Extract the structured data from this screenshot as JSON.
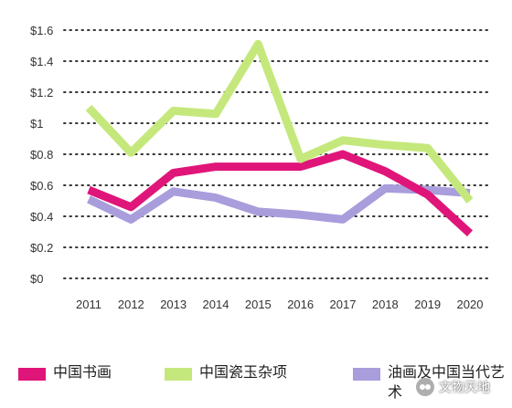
{
  "chart_data": {
    "type": "line",
    "title": "",
    "xlabel": "",
    "ylabel": "",
    "x": [
      "2011",
      "2012",
      "2013",
      "2014",
      "2015",
      "2016",
      "2017",
      "2018",
      "2019",
      "2020"
    ],
    "y_ticks": [
      "$0",
      "$0.2",
      "$0.4",
      "$0.6",
      "$0.8",
      "$1",
      "$1.2",
      "$1.4",
      "$1.6"
    ],
    "ylim": [
      0,
      1.6
    ],
    "grid": "horizontal dotted",
    "legend_position": "bottom",
    "series": [
      {
        "name": "中国书画",
        "color": "#e0157a",
        "values": [
          0.57,
          0.46,
          0.68,
          0.72,
          0.72,
          0.72,
          0.8,
          0.69,
          0.54,
          0.29
        ]
      },
      {
        "name": "中国瓷玉杂项",
        "color": "#c5e87c",
        "values": [
          1.1,
          0.81,
          1.08,
          1.06,
          1.51,
          0.77,
          0.89,
          0.86,
          0.84,
          0.5
        ]
      },
      {
        "name": "油画及中国当代艺术",
        "color": "#a99ddc",
        "values": [
          0.51,
          0.38,
          0.56,
          0.52,
          0.43,
          0.41,
          0.38,
          0.58,
          0.57,
          0.55
        ]
      }
    ]
  },
  "watermark": {
    "text": "文物天地",
    "icon": "wechat-icon"
  }
}
